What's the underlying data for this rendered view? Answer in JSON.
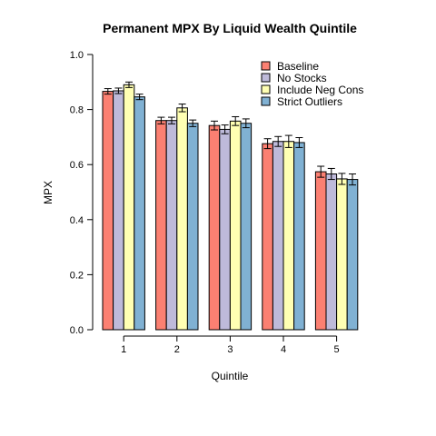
{
  "chart_data": {
    "type": "bar",
    "title": "Permanent MPX By Liquid Wealth Quintile",
    "xlabel": "Quintile",
    "ylabel": "MPX",
    "ylim": [
      0,
      1.0
    ],
    "yticks": [
      "0.0",
      "0.2",
      "0.4",
      "0.6",
      "0.8",
      "1.0"
    ],
    "categories": [
      "1",
      "2",
      "3",
      "4",
      "5"
    ],
    "legend_position": "top-right",
    "grid": false,
    "error_bars": true,
    "series": [
      {
        "name": "Baseline",
        "color": "#FB8072",
        "values": [
          0.866,
          0.76,
          0.742,
          0.676,
          0.574
        ],
        "errors": [
          0.01,
          0.012,
          0.016,
          0.018,
          0.02
        ]
      },
      {
        "name": "No Stocks",
        "color": "#BEBADA",
        "values": [
          0.868,
          0.76,
          0.728,
          0.684,
          0.566
        ],
        "errors": [
          0.01,
          0.012,
          0.016,
          0.018,
          0.02
        ]
      },
      {
        "name": "Include Neg Cons",
        "color": "#FFFFB3",
        "values": [
          0.89,
          0.806,
          0.758,
          0.684,
          0.548
        ],
        "errors": [
          0.01,
          0.014,
          0.016,
          0.022,
          0.02
        ]
      },
      {
        "name": "Strict Outliers",
        "color": "#80B1D3",
        "values": [
          0.846,
          0.75,
          0.75,
          0.68,
          0.546
        ],
        "errors": [
          0.01,
          0.012,
          0.016,
          0.018,
          0.02
        ]
      }
    ]
  }
}
